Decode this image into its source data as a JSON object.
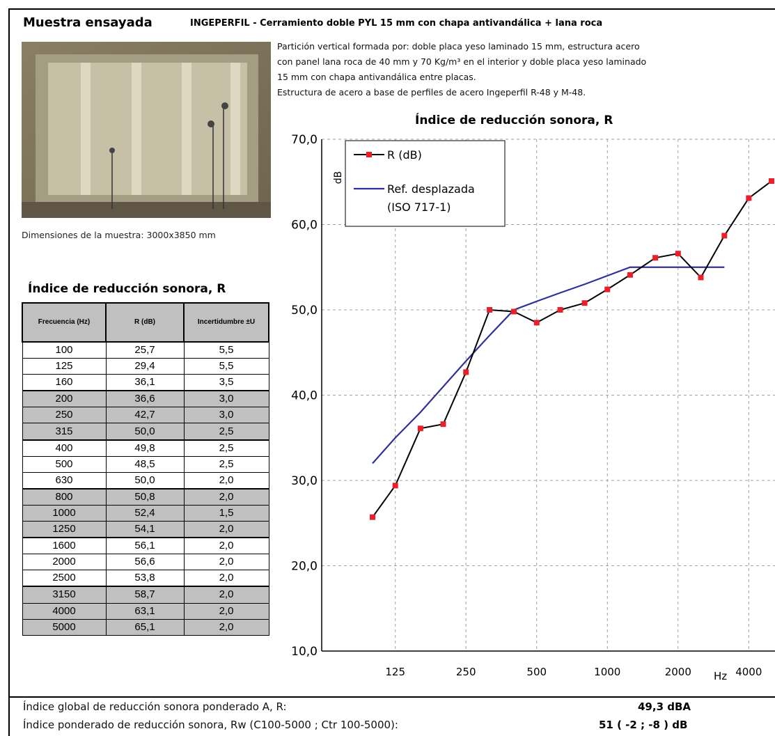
{
  "header": {
    "title": "Muestra ensayada",
    "subtitle": "INGEPERFIL - Cerramiento doble PYL 15 mm con chapa antivandálica + lana roca"
  },
  "description": [
    "Partición vertical formada por: doble placa yeso laminado 15 mm, estructura acero",
    "con panel lana roca de 40 mm y 70 Kg/m³ en el interior y doble placa yeso laminado",
    "15 mm con chapa antivandálica entre placas.",
    "Estructura de acero a base de perfiles de acero Ingeperfil R-48 y M-48."
  ],
  "dimensions": "Dimensiones de la muestra: 3000x3850 mm",
  "table": {
    "title": "Índice de reducción sonora, R",
    "headers": [
      "Frecuencia (Hz)",
      "R (dB)",
      "Incertidumbre ±U"
    ],
    "rows": [
      [
        "100",
        "25,7",
        "5,5"
      ],
      [
        "125",
        "29,4",
        "5,5"
      ],
      [
        "160",
        "36,1",
        "3,5"
      ],
      [
        "200",
        "36,6",
        "3,0"
      ],
      [
        "250",
        "42,7",
        "3,0"
      ],
      [
        "315",
        "50,0",
        "2,5"
      ],
      [
        "400",
        "49,8",
        "2,5"
      ],
      [
        "500",
        "48,5",
        "2,5"
      ],
      [
        "630",
        "50,0",
        "2,0"
      ],
      [
        "800",
        "50,8",
        "2,0"
      ],
      [
        "1000",
        "52,4",
        "1,5"
      ],
      [
        "1250",
        "54,1",
        "2,0"
      ],
      [
        "1600",
        "56,1",
        "2,0"
      ],
      [
        "2000",
        "56,6",
        "2,0"
      ],
      [
        "2500",
        "53,8",
        "2,0"
      ],
      [
        "3150",
        "58,7",
        "2,0"
      ],
      [
        "4000",
        "63,1",
        "2,0"
      ],
      [
        "5000",
        "65,1",
        "2,0"
      ]
    ]
  },
  "results": {
    "line1_label": "Índice global de reducción sonora ponderado A, R:",
    "line1_value": "49,3 dBA",
    "line2_label": "Índice ponderado de reducción sonora, Rw (C100-5000 ; Ctr 100-5000):",
    "line2_value": "51 ( -2 ; -8 ) dB"
  },
  "colors": {
    "series_line": "#000000",
    "series_marker": "#e8202a",
    "ref_line": "#30309a",
    "grid": "#a0a0a0",
    "table_shade": "#c0c0c0"
  },
  "chart_data": {
    "type": "line",
    "title": "Índice de reducción sonora, R",
    "ylabel": "dB",
    "xlabel": "Hz",
    "x_scale": "log",
    "ylim": [
      10,
      70
    ],
    "yticks": [
      "10,0",
      "20,0",
      "30,0",
      "40,0",
      "50,0",
      "60,0",
      "70,0"
    ],
    "xticks": [
      "125",
      "250",
      "500",
      "1000",
      "2000",
      "4000"
    ],
    "x": [
      100,
      125,
      160,
      200,
      250,
      315,
      400,
      500,
      630,
      800,
      1000,
      1250,
      1600,
      2000,
      2500,
      3150,
      4000,
      5000
    ],
    "series": [
      {
        "name": "R (dB)",
        "values": [
          25.7,
          29.4,
          36.1,
          36.6,
          42.7,
          50.0,
          49.8,
          48.5,
          50.0,
          50.8,
          52.4,
          54.1,
          56.1,
          56.6,
          53.8,
          58.7,
          63.1,
          65.1
        ]
      },
      {
        "name": "Ref. desplazada (ISO 717-1)",
        "x": [
          100,
          125,
          160,
          200,
          250,
          315,
          400,
          500,
          630,
          800,
          1000,
          1250,
          1600,
          2000,
          2500,
          3150
        ],
        "values": [
          32,
          35,
          38,
          41,
          44,
          47,
          50,
          51,
          52,
          53,
          54,
          55,
          55,
          55,
          55,
          55
        ]
      }
    ],
    "legend_position": "top-left",
    "grid": true
  }
}
